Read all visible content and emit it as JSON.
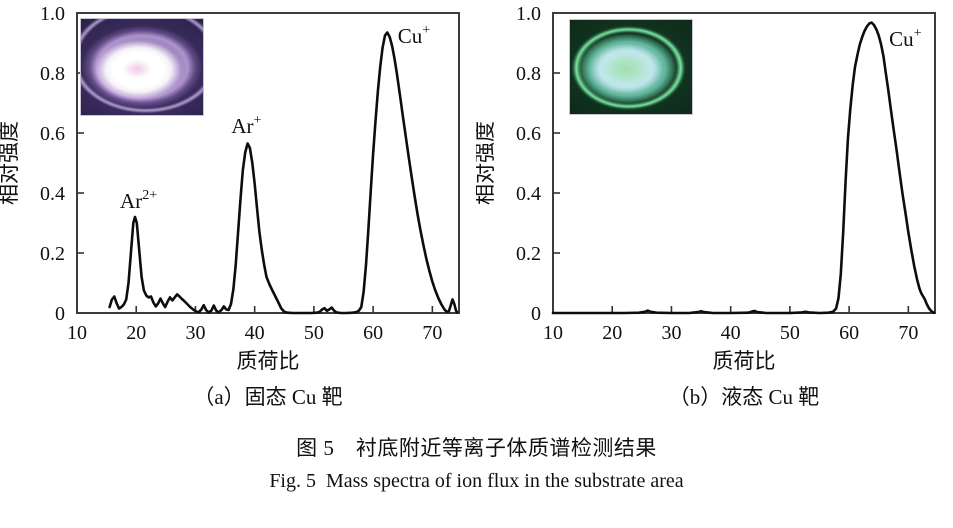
{
  "figure": {
    "caption_zh": "图 5　衬底附近等离子体质谱检测结果",
    "caption_en": "Fig. 5  Mass spectra of ion flux in the substrate area"
  },
  "colors": {
    "curve": "#0d0d0d",
    "frame": "#3c3c3c",
    "tick": "#333333",
    "text": "#111111",
    "inset_a_palette": [
      "#2a1f47",
      "#cbadE9",
      "#ffffff",
      "#eec6e8"
    ],
    "inset_b_palette": [
      "#0c2817",
      "#80f0a8",
      "#c6eaf0",
      "#9ee0a8"
    ]
  },
  "chart_data": [
    {
      "type": "line",
      "subtitle": "（a）固态 Cu 靶",
      "xlabel": "质荷比",
      "ylabel": "相对强度",
      "xlim": [
        10,
        74.5
      ],
      "ylim": [
        0,
        1.0
      ],
      "xticks": [
        10,
        20,
        30,
        40,
        50,
        60,
        70
      ],
      "yticks": [
        0,
        0.2,
        0.4,
        0.6,
        0.8,
        1.0
      ],
      "ytick_labels": [
        "0",
        "0.2",
        "0.4",
        "0.6",
        "0.8",
        "1.0"
      ],
      "grid": false,
      "legend": null,
      "annotations": [
        {
          "base": "Ar",
          "sup": "2+",
          "x": 20.4,
          "y": 0.35
        },
        {
          "base": "Ar",
          "sup": "+",
          "x": 38.6,
          "y": 0.6
        },
        {
          "base": "Cu",
          "sup": "+",
          "x": 66.9,
          "y": 0.9
        }
      ],
      "peaks": [
        {
          "label": "Ar2+",
          "mz": 19.8,
          "intensity": 0.32
        },
        {
          "label": "Ar+",
          "mz": 38.6,
          "intensity": 0.565
        },
        {
          "label": "Cu+",
          "mz": 62.3,
          "intensity": 0.935
        }
      ],
      "inset": {
        "name": "plasma-photo-solid-target",
        "appearance": "purple glow discharge with bright white core"
      },
      "series": [
        [
          15.5,
          0.02
        ],
        [
          15.9,
          0.045
        ],
        [
          16.3,
          0.055
        ],
        [
          16.7,
          0.032
        ],
        [
          17.1,
          0.015
        ],
        [
          17.5,
          0.02
        ],
        [
          17.9,
          0.028
        ],
        [
          18.3,
          0.045
        ],
        [
          18.7,
          0.1
        ],
        [
          19.1,
          0.2
        ],
        [
          19.5,
          0.3
        ],
        [
          19.8,
          0.32
        ],
        [
          20.1,
          0.3
        ],
        [
          20.5,
          0.21
        ],
        [
          20.9,
          0.12
        ],
        [
          21.3,
          0.075
        ],
        [
          21.7,
          0.058
        ],
        [
          22.1,
          0.052
        ],
        [
          22.5,
          0.055
        ],
        [
          22.9,
          0.035
        ],
        [
          23.3,
          0.022
        ],
        [
          23.7,
          0.032
        ],
        [
          24.1,
          0.048
        ],
        [
          24.5,
          0.032
        ],
        [
          24.9,
          0.02
        ],
        [
          25.3,
          0.038
        ],
        [
          25.7,
          0.052
        ],
        [
          26.1,
          0.042
        ],
        [
          26.5,
          0.052
        ],
        [
          26.9,
          0.062
        ],
        [
          27.3,
          0.055
        ],
        [
          27.7,
          0.047
        ],
        [
          28.1,
          0.04
        ],
        [
          28.6,
          0.03
        ],
        [
          29.1,
          0.02
        ],
        [
          29.6,
          0.012
        ],
        [
          30.1,
          0.005
        ],
        [
          30.6,
          0.003
        ],
        [
          31,
          0.012
        ],
        [
          31.4,
          0.026
        ],
        [
          31.8,
          0.01
        ],
        [
          32.2,
          0.002
        ],
        [
          32.7,
          0.008
        ],
        [
          33.1,
          0.025
        ],
        [
          33.5,
          0.008
        ],
        [
          33.9,
          0.002
        ],
        [
          34.4,
          0.01
        ],
        [
          34.8,
          0.022
        ],
        [
          35.2,
          0.012
        ],
        [
          35.6,
          0.01
        ],
        [
          36,
          0.03
        ],
        [
          36.4,
          0.08
        ],
        [
          36.8,
          0.16
        ],
        [
          37.2,
          0.27
        ],
        [
          37.6,
          0.38
        ],
        [
          38,
          0.475
        ],
        [
          38.4,
          0.535
        ],
        [
          38.8,
          0.565
        ],
        [
          39.2,
          0.55
        ],
        [
          39.6,
          0.5
        ],
        [
          40,
          0.43
        ],
        [
          40.4,
          0.35
        ],
        [
          40.8,
          0.27
        ],
        [
          41.2,
          0.21
        ],
        [
          41.6,
          0.16
        ],
        [
          42,
          0.12
        ],
        [
          42.5,
          0.095
        ],
        [
          43,
          0.075
        ],
        [
          43.5,
          0.055
        ],
        [
          44,
          0.035
        ],
        [
          44.5,
          0.015
        ],
        [
          45,
          0.004
        ],
        [
          45.5,
          0.001
        ],
        [
          46.5,
          0
        ],
        [
          48,
          0
        ],
        [
          49.5,
          0
        ],
        [
          50.5,
          0.001
        ],
        [
          51,
          0.004
        ],
        [
          51.4,
          0.012
        ],
        [
          51.8,
          0.016
        ],
        [
          52.2,
          0.007
        ],
        [
          52.6,
          0.012
        ],
        [
          53,
          0.018
        ],
        [
          53.4,
          0.008
        ],
        [
          53.8,
          0.002
        ],
        [
          54.5,
          0
        ],
        [
          55.5,
          0
        ],
        [
          56.5,
          0.001
        ],
        [
          57.2,
          0.003
        ],
        [
          57.6,
          0.008
        ],
        [
          58,
          0.02
        ],
        [
          58.4,
          0.07
        ],
        [
          58.8,
          0.16
        ],
        [
          59.2,
          0.28
        ],
        [
          59.6,
          0.41
        ],
        [
          60,
          0.53
        ],
        [
          60.4,
          0.64
        ],
        [
          60.8,
          0.74
        ],
        [
          61.2,
          0.82
        ],
        [
          61.6,
          0.885
        ],
        [
          62,
          0.925
        ],
        [
          62.4,
          0.935
        ],
        [
          62.8,
          0.92
        ],
        [
          63.2,
          0.89
        ],
        [
          63.6,
          0.85
        ],
        [
          64,
          0.8
        ],
        [
          64.5,
          0.73
        ],
        [
          65,
          0.66
        ],
        [
          65.5,
          0.59
        ],
        [
          66,
          0.52
        ],
        [
          66.5,
          0.455
        ],
        [
          67,
          0.39
        ],
        [
          67.5,
          0.33
        ],
        [
          68,
          0.275
        ],
        [
          68.5,
          0.225
        ],
        [
          69,
          0.18
        ],
        [
          69.5,
          0.14
        ],
        [
          70,
          0.105
        ],
        [
          70.5,
          0.075
        ],
        [
          71,
          0.05
        ],
        [
          71.5,
          0.03
        ],
        [
          72,
          0.013
        ],
        [
          72.4,
          0.004
        ],
        [
          72.8,
          0.006
        ],
        [
          73.1,
          0.025
        ],
        [
          73.4,
          0.045
        ],
        [
          73.7,
          0.03
        ],
        [
          74,
          0.008
        ],
        [
          74.2,
          0.002
        ]
      ]
    },
    {
      "type": "line",
      "subtitle": "（b）液态 Cu 靶",
      "xlabel": "质荷比",
      "ylabel": "相对强度",
      "xlim": [
        10,
        74.5
      ],
      "ylim": [
        0,
        1.0
      ],
      "xticks": [
        10,
        20,
        30,
        40,
        50,
        60,
        70
      ],
      "yticks": [
        0,
        0.2,
        0.4,
        0.6,
        0.8,
        1.0
      ],
      "ytick_labels": [
        "0",
        "0.2",
        "0.4",
        "0.6",
        "0.8",
        "1.0"
      ],
      "grid": false,
      "legend": null,
      "annotations": [
        {
          "base": "Cu",
          "sup": "+",
          "x": 69.5,
          "y": 0.89
        }
      ],
      "peaks": [
        {
          "label": "Cu+",
          "mz": 63.8,
          "intensity": 0.968
        }
      ],
      "inset": {
        "name": "plasma-photo-liquid-target",
        "appearance": "green glow discharge with pale cyan ring"
      },
      "series": [
        [
          10,
          0
        ],
        [
          13,
          0
        ],
        [
          16,
          0
        ],
        [
          19,
          0
        ],
        [
          22,
          0
        ],
        [
          24.5,
          0.001
        ],
        [
          25.5,
          0.004
        ],
        [
          26,
          0.008
        ],
        [
          26.5,
          0.004
        ],
        [
          27.5,
          0.001
        ],
        [
          30,
          0
        ],
        [
          33,
          0
        ],
        [
          34.5,
          0.003
        ],
        [
          35,
          0.006
        ],
        [
          35.5,
          0.003
        ],
        [
          37,
          0
        ],
        [
          40,
          0
        ],
        [
          43,
          0.001
        ],
        [
          43.5,
          0.004
        ],
        [
          44,
          0.007
        ],
        [
          44.5,
          0.003
        ],
        [
          46,
          0
        ],
        [
          48,
          0
        ],
        [
          50,
          0
        ],
        [
          52,
          0.002
        ],
        [
          52.6,
          0.004
        ],
        [
          53.2,
          0.002
        ],
        [
          55,
          0
        ],
        [
          56.5,
          0.001
        ],
        [
          57.3,
          0.004
        ],
        [
          57.8,
          0.015
        ],
        [
          58.2,
          0.05
        ],
        [
          58.6,
          0.13
        ],
        [
          59,
          0.27
        ],
        [
          59.4,
          0.44
        ],
        [
          59.8,
          0.58
        ],
        [
          60.2,
          0.68
        ],
        [
          60.6,
          0.76
        ],
        [
          61,
          0.82
        ],
        [
          61.4,
          0.86
        ],
        [
          61.8,
          0.895
        ],
        [
          62.2,
          0.92
        ],
        [
          62.6,
          0.94
        ],
        [
          63,
          0.955
        ],
        [
          63.4,
          0.965
        ],
        [
          63.8,
          0.968
        ],
        [
          64.2,
          0.96
        ],
        [
          64.6,
          0.945
        ],
        [
          65,
          0.925
        ],
        [
          65.4,
          0.895
        ],
        [
          65.8,
          0.855
        ],
        [
          66.2,
          0.8
        ],
        [
          66.6,
          0.745
        ],
        [
          67,
          0.685
        ],
        [
          67.5,
          0.615
        ],
        [
          68,
          0.545
        ],
        [
          68.5,
          0.47
        ],
        [
          69,
          0.4
        ],
        [
          69.5,
          0.335
        ],
        [
          70,
          0.27
        ],
        [
          70.5,
          0.21
        ],
        [
          71,
          0.155
        ],
        [
          71.5,
          0.11
        ],
        [
          71.9,
          0.08
        ],
        [
          72.2,
          0.065
        ],
        [
          72.5,
          0.055
        ],
        [
          72.8,
          0.045
        ],
        [
          73.1,
          0.03
        ],
        [
          73.5,
          0.015
        ],
        [
          73.9,
          0.006
        ],
        [
          74.3,
          0.001
        ]
      ]
    }
  ]
}
